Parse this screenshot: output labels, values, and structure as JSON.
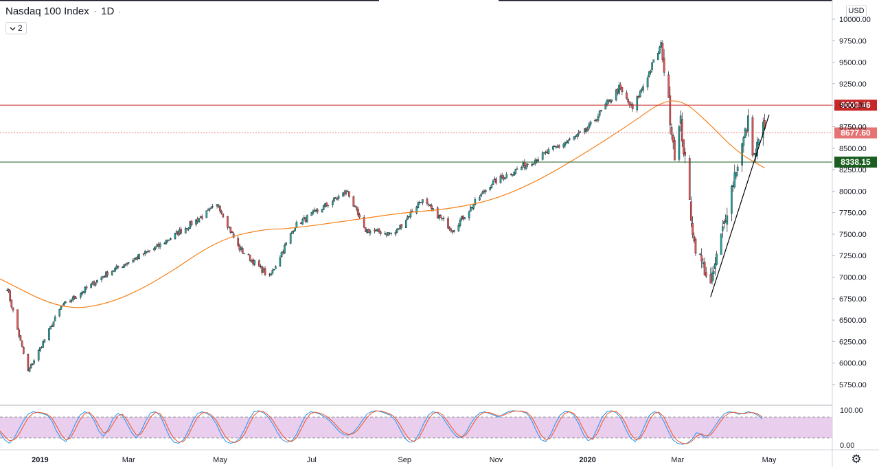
{
  "header": {
    "symbol": "Nasdaq 100 Index",
    "separator": "·",
    "interval": "1D",
    "trailing": "·",
    "collapse_count": "2"
  },
  "currency": "USD",
  "icons": {
    "collapse": "chevron-down-icon",
    "settings": "gear-icon"
  },
  "colors": {
    "up_candle": "#26a69a",
    "down_candle": "#ef5350",
    "candle_wick": "#131722",
    "moving_average": "#f57f17",
    "resistance": "#c62828",
    "last_price": "#e57373",
    "support": "#1b5e20",
    "trendline": "#000000",
    "stoch_k": "#2196f3",
    "stoch_d": "#f4511e",
    "stoch_band": "#e1bee7"
  },
  "chart_data": [
    {
      "type": "candlestick",
      "title": "",
      "x_labels": [
        "2019",
        "Mar",
        "May",
        "Jul",
        "Sep",
        "Nov",
        "2020",
        "Mar",
        "May"
      ],
      "y_ticks": [
        "10000.00",
        "9750.00",
        "9500.00",
        "9250.00",
        "9000.00",
        "8750.00",
        "8500.00",
        "8250.00",
        "8000.00",
        "7750.00",
        "7500.00",
        "7250.00",
        "7000.00",
        "6750.00",
        "6500.00",
        "6250.00",
        "6000.00",
        "5750.00"
      ],
      "ylim": [
        5750,
        10000
      ],
      "anchors": [
        {
          "date": "2018-12-10",
          "close": 6880
        },
        {
          "date": "2018-12-24",
          "close": 5900
        },
        {
          "date": "2019-01-15",
          "close": 6650
        },
        {
          "date": "2019-02-15",
          "close": 7050
        },
        {
          "date": "2019-03-20",
          "close": 7350
        },
        {
          "date": "2019-04-30",
          "close": 7840
        },
        {
          "date": "2019-05-13",
          "close": 7350
        },
        {
          "date": "2019-06-03",
          "close": 7000
        },
        {
          "date": "2019-06-20",
          "close": 7600
        },
        {
          "date": "2019-07-25",
          "close": 8000
        },
        {
          "date": "2019-08-05",
          "close": 7550
        },
        {
          "date": "2019-08-25",
          "close": 7500
        },
        {
          "date": "2019-09-12",
          "close": 7900
        },
        {
          "date": "2019-10-03",
          "close": 7550
        },
        {
          "date": "2019-10-28",
          "close": 8080
        },
        {
          "date": "2019-11-25",
          "close": 8350
        },
        {
          "date": "2019-12-31",
          "close": 8700
        },
        {
          "date": "2020-01-22",
          "close": 9200
        },
        {
          "date": "2020-01-31",
          "close": 8950
        },
        {
          "date": "2020-02-19",
          "close": 9700
        },
        {
          "date": "2020-02-28",
          "close": 8450
        },
        {
          "date": "2020-03-03",
          "close": 8800
        },
        {
          "date": "2020-03-12",
          "close": 7400
        },
        {
          "date": "2020-03-23",
          "close": 6900
        },
        {
          "date": "2020-04-08",
          "close": 8200
        },
        {
          "date": "2020-04-17",
          "close": 8800
        },
        {
          "date": "2020-04-21",
          "close": 8400
        },
        {
          "date": "2020-04-28",
          "close": 8800
        }
      ],
      "moving_average": [
        {
          "date": "2018-12-03",
          "value": 7000
        },
        {
          "date": "2019-01-15",
          "value": 6620
        },
        {
          "date": "2019-02-15",
          "value": 6680
        },
        {
          "date": "2019-03-20",
          "value": 6950
        },
        {
          "date": "2019-04-30",
          "value": 7440
        },
        {
          "date": "2019-05-31",
          "value": 7560
        },
        {
          "date": "2019-06-15",
          "value": 7560
        },
        {
          "date": "2019-07-31",
          "value": 7670
        },
        {
          "date": "2019-08-31",
          "value": 7750
        },
        {
          "date": "2019-09-30",
          "value": 7790
        },
        {
          "date": "2019-10-31",
          "value": 7900
        },
        {
          "date": "2019-11-30",
          "value": 8130
        },
        {
          "date": "2019-12-31",
          "value": 8450
        },
        {
          "date": "2020-01-31",
          "value": 8800
        },
        {
          "date": "2020-02-20",
          "value": 9050
        },
        {
          "date": "2020-03-05",
          "value": 9050
        },
        {
          "date": "2020-03-20",
          "value": 8820
        },
        {
          "date": "2020-04-10",
          "value": 8450
        },
        {
          "date": "2020-04-28",
          "value": 8270
        }
      ],
      "horizontal_levels": [
        {
          "value": 9000.46,
          "label": "9000.46",
          "style": "solid",
          "color": "#c62828"
        },
        {
          "value": 8677.6,
          "label": "8677.60",
          "style": "dotted",
          "color": "#e57373"
        },
        {
          "value": 8338.15,
          "label": "8338.15",
          "style": "solid",
          "color": "#1b5e20"
        }
      ],
      "trendline": {
        "start": {
          "date": "2020-03-23",
          "value": 6770
        },
        "end": {
          "date": "2020-05-01",
          "value": 8890
        }
      }
    },
    {
      "type": "line",
      "title": "",
      "y_ticks": [
        "100.00",
        "0.00"
      ],
      "ylim": [
        0,
        100
      ],
      "band": [
        20,
        80
      ],
      "series": [
        {
          "color": "#2196f3",
          "values": [
            35,
            15,
            5,
            20,
            45,
            70,
            88,
            95,
            93,
            90,
            85,
            70,
            40,
            18,
            10,
            30,
            60,
            85,
            95,
            90,
            70,
            40,
            25,
            45,
            75,
            90,
            85,
            60,
            35,
            20,
            40,
            70,
            92,
            95,
            85,
            55,
            25,
            8,
            5,
            15,
            40,
            70,
            90,
            95,
            90,
            80,
            60,
            30,
            10,
            5,
            8,
            20,
            45,
            75,
            95,
            98,
            92,
            80,
            60,
            35,
            15,
            8,
            12,
            30,
            60,
            85,
            95,
            93,
            88,
            80,
            70,
            55,
            40,
            30,
            28,
            35,
            50,
            70,
            88,
            96,
            98,
            95,
            90,
            85,
            70,
            45,
            20,
            8,
            10,
            30,
            60,
            85,
            95,
            92,
            80,
            60,
            40,
            25,
            20,
            35,
            60,
            80,
            92,
            95,
            90,
            85,
            80,
            88,
            95,
            98,
            97,
            95,
            90,
            70,
            40,
            15,
            10,
            30,
            60,
            85,
            95,
            95,
            85,
            60,
            30,
            12,
            20,
            50,
            80,
            95,
            98,
            92,
            75,
            45,
            20,
            10,
            25,
            55,
            85,
            95,
            92,
            70,
            40,
            15,
            5,
            2,
            5,
            15,
            35,
            30,
            20,
            35,
            55,
            75,
            90,
            95,
            93,
            88,
            90,
            95,
            92,
            85,
            75
          ]
        },
        {
          "color": "#f4511e",
          "values": [
            40,
            25,
            12,
            15,
            30,
            55,
            78,
            90,
            94,
            92,
            88,
            78,
            55,
            30,
            15,
            20,
            45,
            72,
            90,
            93,
            80,
            55,
            35,
            38,
            60,
            82,
            88,
            72,
            48,
            28,
            32,
            55,
            80,
            93,
            90,
            70,
            40,
            18,
            8,
            10,
            28,
            55,
            80,
            92,
            93,
            85,
            70,
            45,
            22,
            10,
            7,
            14,
            32,
            60,
            85,
            96,
            95,
            86,
            70,
            48,
            28,
            14,
            10,
            20,
            45,
            72,
            90,
            94,
            91,
            85,
            76,
            63,
            48,
            36,
            30,
            32,
            42,
            60,
            78,
            92,
            97,
            97,
            93,
            88,
            78,
            58,
            35,
            16,
            10,
            20,
            45,
            72,
            90,
            94,
            87,
            70,
            50,
            33,
            23,
            28,
            48,
            70,
            86,
            93,
            93,
            88,
            83,
            85,
            91,
            96,
            97,
            96,
            93,
            80,
            55,
            28,
            14,
            20,
            45,
            72,
            90,
            95,
            90,
            72,
            45,
            22,
            16,
            35,
            65,
            88,
            96,
            95,
            84,
            60,
            33,
            16,
            18,
            40,
            70,
            90,
            94,
            82,
            55,
            28,
            12,
            5,
            4,
            10,
            25,
            32,
            26,
            28,
            45,
            65,
            82,
            92,
            94,
            91,
            89,
            92,
            93,
            89,
            80
          ]
        }
      ]
    }
  ]
}
